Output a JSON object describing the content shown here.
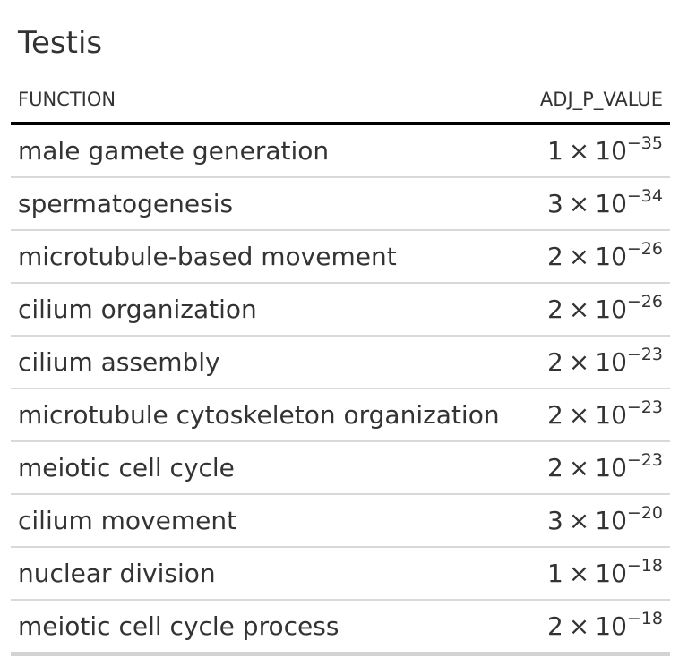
{
  "title": "Testis",
  "columns": {
    "function": "FUNCTION",
    "adj_p_value": "ADJ_P_VALUE"
  },
  "rows": [
    {
      "function": "male gamete generation",
      "mantissa": "1",
      "base": "10",
      "exponent": "−35"
    },
    {
      "function": "spermatogenesis",
      "mantissa": "3",
      "base": "10",
      "exponent": "−34"
    },
    {
      "function": "microtubule-based movement",
      "mantissa": "2",
      "base": "10",
      "exponent": "−26"
    },
    {
      "function": "cilium organization",
      "mantissa": "2",
      "base": "10",
      "exponent": "−26"
    },
    {
      "function": "cilium assembly",
      "mantissa": "2",
      "base": "10",
      "exponent": "−23"
    },
    {
      "function": "microtubule cytoskeleton organization",
      "mantissa": "2",
      "base": "10",
      "exponent": "−23"
    },
    {
      "function": "meiotic cell cycle",
      "mantissa": "2",
      "base": "10",
      "exponent": "−23"
    },
    {
      "function": "cilium movement",
      "mantissa": "3",
      "base": "10",
      "exponent": "−20"
    },
    {
      "function": "nuclear division",
      "mantissa": "1",
      "base": "10",
      "exponent": "−18"
    },
    {
      "function": "meiotic cell cycle process",
      "mantissa": "2",
      "base": "10",
      "exponent": "−18"
    }
  ],
  "times_symbol": "×"
}
